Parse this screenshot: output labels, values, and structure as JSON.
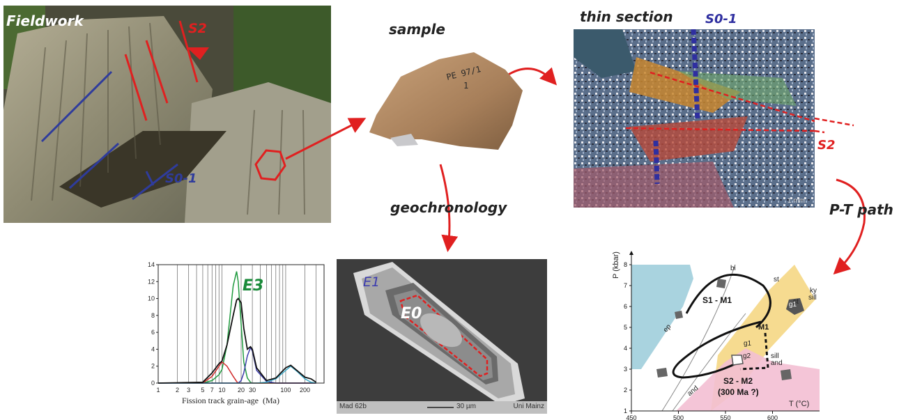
{
  "labels": {
    "fieldwork": "Fieldwork",
    "sample": "sample",
    "thin_section": "thin section",
    "geochronology": "geochronology",
    "pt_path": "P-T path"
  },
  "fieldwork_photo": {
    "s2": "S2",
    "s01": "S0-1"
  },
  "sample_photo": {
    "handwriting_1": "PE 97/1",
    "handwriting_2": "1"
  },
  "thin_section_photo": {
    "s01": "S0-1",
    "s2": "S2",
    "scale": "1 mm"
  },
  "zircon_image": {
    "e1": "E1",
    "e0": "E0",
    "footer_left": "Mad 62b",
    "scale": "30 µm",
    "footer_right": "Uni Mainz"
  },
  "histogram": {
    "peak_label": "E3",
    "xlabel": "Fission track grain-age  (Ma)",
    "yticks": [
      "0",
      "2",
      "4",
      "6",
      "8",
      "10",
      "12",
      "14"
    ],
    "xticks": [
      "1",
      "2",
      "3",
      "5",
      "7",
      "10",
      "20",
      "30",
      "100",
      "200"
    ]
  },
  "pt_diagram": {
    "ylabel": "P (kbar)",
    "xlabel": "T (°C)",
    "yticks": [
      "1",
      "2",
      "3",
      "4",
      "5",
      "6",
      "7",
      "8"
    ],
    "xticks": [
      "450",
      "500",
      "550",
      "600"
    ],
    "fields": {
      "ep": "ep",
      "bi": "bi",
      "st": "st",
      "st2": "st",
      "ky": "ky",
      "sill": "sill",
      "sill2": "sill",
      "and": "and",
      "and2": "and"
    },
    "g1": "g1",
    "g1b": "g1",
    "g2": "g2",
    "m1": "M1",
    "s1_m1": "S1 - M1",
    "s2_m2": "S2 - M2",
    "age": "(300 Ma ?)"
  },
  "chart_data": {
    "type": "line",
    "title": "",
    "xlabel": "Fission track grain-age  (Ma)",
    "ylabel": "",
    "x_scale": "log",
    "xlim": [
      1,
      400
    ],
    "ylim": [
      0,
      14
    ],
    "x": [
      1,
      5,
      7,
      9,
      10,
      12,
      15,
      17,
      18,
      20,
      22,
      25,
      28,
      30,
      35,
      50,
      70,
      100,
      120,
      150,
      200,
      250,
      300
    ],
    "series": [
      {
        "name": "E3",
        "values": [
          0,
          0,
          0.3,
          1.0,
          1.6,
          4.5,
          11.5,
          13.2,
          12.0,
          7.0,
          2.5,
          0.6,
          0.1,
          0,
          0,
          0,
          0,
          0,
          0,
          0,
          0,
          0,
          0
        ]
      },
      {
        "values": [
          0,
          0,
          0.8,
          2.0,
          2.5,
          2.0,
          0.8,
          0.2,
          0,
          0,
          0,
          0,
          0,
          0,
          0,
          0,
          0,
          0,
          0,
          0,
          0,
          0,
          0
        ]
      },
      {
        "values": [
          0,
          0,
          0,
          0,
          0,
          0,
          0,
          0,
          0,
          0.3,
          1.2,
          3.2,
          4.2,
          3.8,
          1.5,
          0.2,
          0,
          0,
          0,
          0,
          0,
          0,
          0
        ]
      },
      {
        "values": [
          0,
          0,
          0,
          0,
          0,
          0,
          0,
          0,
          0,
          0,
          0,
          0,
          0,
          0,
          0,
          0.1,
          0.5,
          1.5,
          2.0,
          1.4,
          0.5,
          0.1,
          0
        ]
      },
      {
        "values": [
          0,
          0.1,
          1.2,
          2.3,
          2.6,
          4.5,
          8.0,
          9.8,
          10.0,
          9.5,
          6.5,
          4.0,
          4.3,
          4.0,
          1.8,
          0.3,
          0.6,
          1.8,
          2.1,
          1.5,
          0.7,
          0.5,
          0.1
        ]
      }
    ],
    "grid": true
  }
}
